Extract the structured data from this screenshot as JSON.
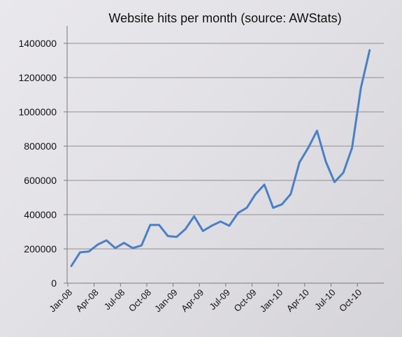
{
  "chart_data": {
    "type": "line",
    "title": "Website hits per month (source: AWStats)",
    "xlabel": "",
    "ylabel": "",
    "ylim": [
      0,
      1400000
    ],
    "y_ticks": [
      "0",
      "200000",
      "400000",
      "600000",
      "800000",
      "1000000",
      "1200000",
      "1400000"
    ],
    "x_tick_labels": [
      "Jan-08",
      "Apr-08",
      "Jul-08",
      "Oct-08",
      "Jan-09",
      "Apr-09",
      "Jul-09",
      "Oct-09",
      "Jan-10",
      "Apr-10",
      "Jul-10",
      "Oct-10"
    ],
    "grid": "horizontal",
    "legend": "none",
    "line_color": "#4a7fc8",
    "x": [
      "Jan-08",
      "Feb-08",
      "Mar-08",
      "Apr-08",
      "May-08",
      "Jun-08",
      "Jul-08",
      "Aug-08",
      "Sep-08",
      "Oct-08",
      "Nov-08",
      "Dec-08",
      "Jan-09",
      "Feb-09",
      "Mar-09",
      "Apr-09",
      "May-09",
      "Jun-09",
      "Jul-09",
      "Aug-09",
      "Sep-09",
      "Oct-09",
      "Nov-09",
      "Dec-09",
      "Jan-10",
      "Feb-10",
      "Mar-10",
      "Apr-10",
      "May-10",
      "Jun-10",
      "Jul-10",
      "Aug-10",
      "Sep-10",
      "Oct-10",
      "Nov-10"
    ],
    "series": [
      {
        "values": [
          100000,
          180000,
          185000,
          225000,
          250000,
          205000,
          235000,
          205000,
          220000,
          340000,
          340000,
          275000,
          270000,
          315000,
          390000,
          305000,
          335000,
          360000,
          335000,
          410000,
          440000,
          520000,
          575000,
          440000,
          460000,
          520000,
          705000,
          790000,
          890000,
          710000,
          590000,
          645000,
          790000,
          1140000,
          1360000
        ]
      }
    ]
  }
}
